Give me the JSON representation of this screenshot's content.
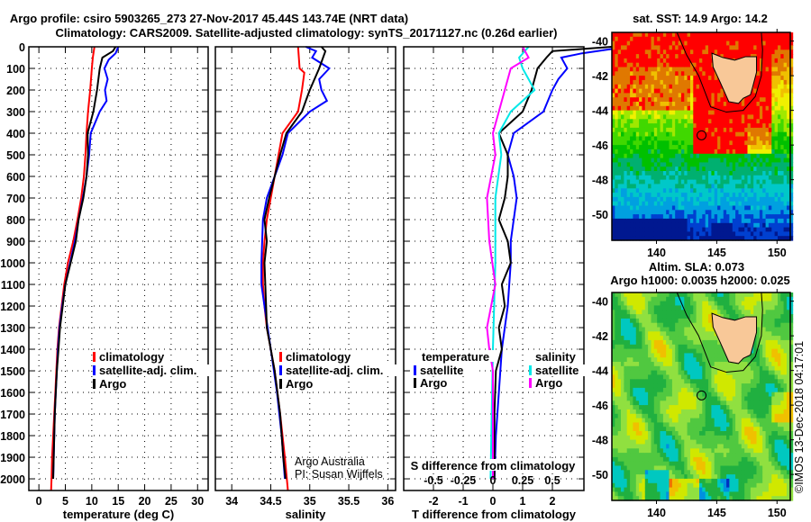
{
  "title": {
    "line1": "Argo profile: csiro 5903265_273 27-Nov-2017 45.44S 143.74E (NRT data)",
    "line2": "Climatology: CARS2009. Satellite-adjusted climatology: synTS_20171127.nc (0.26d earlier)"
  },
  "colors": {
    "climatology": "#ff0000",
    "satellite": "#0000ff",
    "argo": "#000000",
    "sal_satellite": "#00e8e8",
    "sal_argo": "#ff00ff"
  },
  "credits": {
    "line1": "Argo Australia",
    "line2": "PI: Susan Wijffels",
    "stamp": "©IMOS 13-Dec-2018 04:17:01"
  },
  "chart_data": [
    {
      "type": "line",
      "id": "temp",
      "xlabel": "temperature (deg C)",
      "ylabel": "",
      "xlim": [
        -1.9,
        32.0
      ],
      "ylim": [
        2054,
        0
      ],
      "xticks": [
        0,
        5,
        10,
        15,
        20,
        25,
        30
      ],
      "yticks": [
        0,
        100,
        200,
        300,
        400,
        500,
        600,
        700,
        800,
        900,
        1000,
        1100,
        1200,
        1300,
        1400,
        1500,
        1600,
        1700,
        1800,
        1900,
        2000
      ],
      "grid": true,
      "legend": {
        "placement": "lower-center",
        "entries": [
          "climatology",
          "satellite-adj. clim.",
          "Argo"
        ]
      },
      "series": [
        {
          "name": "climatology",
          "color": "#ff0000",
          "depth": [
            0,
            50,
            100,
            200,
            300,
            400,
            500,
            600,
            700,
            800,
            900,
            1000,
            1100,
            1200,
            1300,
            1400,
            1500,
            1600,
            1700,
            1800,
            1900,
            2000,
            2054
          ],
          "values": [
            10.5,
            10.2,
            10.0,
            9.7,
            9.3,
            9.0,
            8.8,
            8.5,
            8.0,
            7.3,
            6.5,
            5.5,
            4.8,
            4.3,
            3.8,
            3.5,
            3.3,
            3.1,
            2.9,
            2.7,
            2.5,
            2.4,
            2.3
          ]
        },
        {
          "name": "satellite-adj. clim.",
          "color": "#0000ff",
          "depth": [
            0,
            30,
            60,
            100,
            150,
            200,
            250,
            300,
            400,
            500,
            600,
            700,
            800,
            900,
            1000,
            1100,
            1200,
            1300,
            1400,
            1500,
            1600,
            1700,
            1800,
            1900,
            2000
          ],
          "values": [
            15.0,
            14.5,
            13.2,
            12.4,
            13.0,
            12.5,
            12.8,
            11.5,
            9.8,
            9.5,
            9.0,
            8.3,
            7.5,
            6.8,
            5.9,
            5.0,
            4.4,
            3.9,
            3.6,
            3.4,
            3.2,
            3.0,
            2.9,
            2.8,
            2.7
          ]
        },
        {
          "name": "Argo",
          "color": "#000000",
          "depth": [
            0,
            20,
            50,
            100,
            200,
            300,
            400,
            500,
            600,
            700,
            800,
            900,
            1000,
            1100,
            1200,
            1300,
            1400,
            1500,
            1600,
            1700,
            1800,
            1900,
            2000
          ],
          "values": [
            14.5,
            14.0,
            12.0,
            11.5,
            11.0,
            10.3,
            9.2,
            9.3,
            9.0,
            8.4,
            7.5,
            7.0,
            6.0,
            5.0,
            4.5,
            4.0,
            3.7,
            3.4,
            3.2,
            3.0,
            2.9,
            2.8,
            2.7
          ]
        }
      ]
    },
    {
      "type": "line",
      "id": "sal",
      "xlabel": "salinity",
      "xlim": [
        33.79,
        36.1
      ],
      "ylim": [
        2054,
        0
      ],
      "xticks": [
        34,
        34.5,
        35,
        35.5,
        36
      ],
      "grid": true,
      "legend": {
        "placement": "lower-center",
        "entries": [
          "climatology",
          "satellite-adj. clim.",
          "Argo"
        ]
      },
      "series": [
        {
          "name": "climatology",
          "color": "#ff0000",
          "depth": [
            0,
            100,
            120,
            200,
            300,
            400,
            500,
            600,
            700,
            800,
            900,
            1000,
            1100,
            1200,
            1300,
            1400,
            1500,
            1700,
            1900,
            2054
          ],
          "values": [
            34.85,
            34.87,
            34.93,
            34.9,
            34.85,
            34.65,
            34.6,
            34.55,
            34.5,
            34.45,
            34.42,
            34.4,
            34.4,
            34.42,
            34.45,
            34.5,
            34.55,
            34.62,
            34.68,
            34.72
          ]
        },
        {
          "name": "satellite-adj. clim.",
          "color": "#0000ff",
          "depth": [
            0,
            20,
            50,
            100,
            150,
            200,
            250,
            300,
            400,
            500,
            600,
            700,
            800,
            1000,
            1100,
            1200,
            1400,
            1600,
            1800,
            2000
          ],
          "values": [
            34.95,
            35.08,
            35.03,
            35.25,
            35.12,
            35.15,
            35.22,
            35.0,
            34.72,
            34.65,
            34.55,
            34.45,
            34.4,
            34.38,
            34.38,
            34.42,
            34.5,
            34.58,
            34.64,
            34.68
          ]
        },
        {
          "name": "Argo",
          "color": "#000000",
          "depth": [
            0,
            20,
            100,
            200,
            250,
            300,
            400,
            500,
            600,
            700,
            800,
            900,
            1000,
            1200,
            1300,
            1400,
            1500,
            1700,
            1900,
            2000
          ],
          "values": [
            35.15,
            35.2,
            35.12,
            35.0,
            34.95,
            34.9,
            34.7,
            34.62,
            34.55,
            34.48,
            34.42,
            34.45,
            34.42,
            34.44,
            34.45,
            34.5,
            34.55,
            34.62,
            34.66,
            34.69
          ]
        }
      ]
    },
    {
      "type": "line",
      "id": "diff",
      "xlabel": "T difference from climatology",
      "xlabel2": "S difference from climatology",
      "xlim": [
        -3.0,
        3.06
      ],
      "s_scale": 4,
      "ylim": [
        2054,
        0
      ],
      "xticks": [
        -2,
        -1,
        0,
        1,
        2
      ],
      "xtick_labels": [
        "-2",
        "-1",
        "0",
        "1",
        "2"
      ],
      "sticks": [
        -0.5,
        -0.25,
        0,
        0.25,
        0.5
      ],
      "stick_labels": [
        "-0.5",
        "-0.25",
        "0",
        "0.25",
        "0.5"
      ],
      "grid": true,
      "legend": {
        "temperature_title": "temperature",
        "salinity_title": "salinity",
        "entries": [
          "satellite",
          "Argo"
        ]
      },
      "series": [
        {
          "name": "temperature satellite",
          "color": "#0000ff",
          "kind": "T",
          "depth": [
            0,
            30,
            50,
            100,
            150,
            200,
            300,
            400,
            500,
            600,
            700,
            800,
            900,
            1000,
            1200,
            1400,
            1600,
            1800,
            2000
          ],
          "values": [
            4.5,
            3.0,
            2.3,
            2.5,
            2.2,
            2.0,
            1.7,
            0.7,
            0.5,
            0.7,
            0.8,
            0.7,
            0.6,
            0.6,
            0.5,
            0.3,
            0.2,
            0.1,
            0.05
          ]
        },
        {
          "name": "temperature Argo",
          "color": "#000000",
          "kind": "T",
          "depth": [
            0,
            20,
            50,
            100,
            200,
            300,
            400,
            500,
            600,
            700,
            800,
            900,
            1000,
            1100,
            1200,
            1300,
            1400,
            1500,
            1700,
            2000
          ],
          "values": [
            4.0,
            2.0,
            1.8,
            1.5,
            1.3,
            1.0,
            0.2,
            0.5,
            0.5,
            0.4,
            0.2,
            0.5,
            0.6,
            0.3,
            0.4,
            0.2,
            0.3,
            0.1,
            0.05,
            0.05
          ]
        },
        {
          "name": "salinity satellite",
          "color": "#00e8e8",
          "kind": "S",
          "depth": [
            0,
            50,
            100,
            200,
            300,
            400,
            500,
            700,
            1000,
            1400,
            1700,
            2000
          ],
          "values": [
            0.3,
            0.22,
            0.25,
            0.35,
            0.15,
            0.05,
            0.07,
            0.02,
            0.02,
            0.0,
            -0.01,
            -0.02
          ]
        },
        {
          "name": "salinity Argo",
          "color": "#ff00ff",
          "kind": "S",
          "depth": [
            0,
            50,
            100,
            200,
            300,
            400,
            500,
            700,
            900,
            1100,
            1300,
            1400,
            1500,
            2000
          ],
          "values": [
            0.25,
            0.3,
            0.15,
            0.1,
            0.05,
            0.0,
            0.02,
            -0.05,
            -0.03,
            0.02,
            -0.05,
            -0.03,
            0.0,
            0.0
          ]
        }
      ]
    },
    {
      "type": "heatmap",
      "id": "sst_map",
      "title": "sat. SST: 14.9 Argo: 14.2",
      "xlim": [
        136.3,
        151.1
      ],
      "ylim": [
        -51.5,
        -39.5
      ],
      "xticks": [
        140,
        145,
        150
      ],
      "yticks": [
        -40,
        -42,
        -44,
        -46,
        -48,
        -50
      ],
      "marker": {
        "lon": 143.74,
        "lat": -45.44
      }
    },
    {
      "type": "heatmap",
      "id": "sla_map",
      "title": "Altim. SLA: 0.073",
      "subtitle": "Argo h1000: 0.0035 h2000: 0.025",
      "xlim": [
        136.3,
        151.1
      ],
      "ylim": [
        -51.5,
        -39.5
      ],
      "xticks": [
        140,
        145,
        150
      ],
      "yticks": [
        -40,
        -42,
        -44,
        -46,
        -48,
        -50
      ],
      "marker": {
        "lon": 143.74,
        "lat": -45.44
      }
    }
  ]
}
